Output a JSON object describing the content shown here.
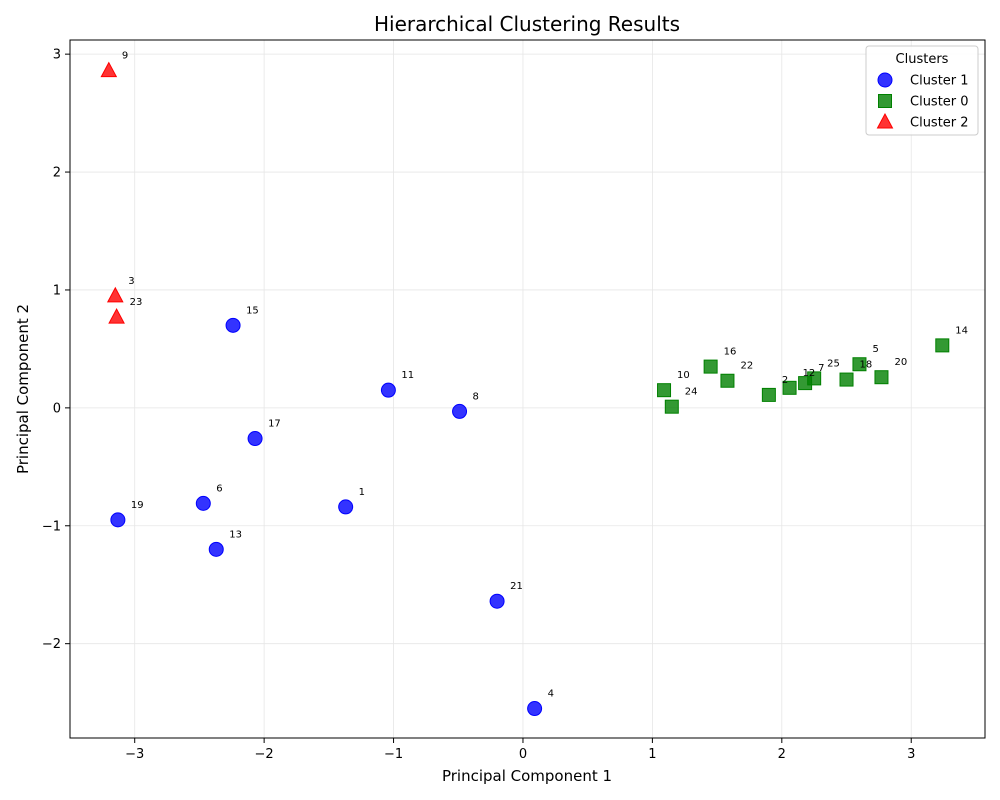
{
  "chart_data": {
    "type": "scatter",
    "title": "Hierarchical Clustering Results",
    "xlabel": "Principal Component 1",
    "ylabel": "Principal Component 2",
    "xlim": [
      -3.5,
      3.57
    ],
    "ylim": [
      -2.8,
      3.12
    ],
    "xticks": [
      -3,
      -2,
      -1,
      0,
      1,
      2,
      3
    ],
    "yticks": [
      -2,
      -1,
      0,
      1,
      2,
      3
    ],
    "tick_labels_x": [
      "−3",
      "−2",
      "−1",
      "0",
      "1",
      "2",
      "3"
    ],
    "tick_labels_y": [
      "−2",
      "−1",
      "0",
      "1",
      "2",
      "3"
    ],
    "grid": true,
    "legend": {
      "title": "Clusters",
      "placement": "top-right"
    },
    "series": [
      {
        "name": "Cluster 1",
        "marker": "circle",
        "color": "#0000ff",
        "points": [
          {
            "id": "15",
            "x": -2.24,
            "y": 0.7
          },
          {
            "id": "11",
            "x": -1.04,
            "y": 0.15
          },
          {
            "id": "8",
            "x": -0.49,
            "y": -0.03
          },
          {
            "id": "17",
            "x": -2.07,
            "y": -0.26
          },
          {
            "id": "6",
            "x": -2.47,
            "y": -0.81
          },
          {
            "id": "1",
            "x": -1.37,
            "y": -0.84
          },
          {
            "id": "19",
            "x": -3.13,
            "y": -0.95
          },
          {
            "id": "13",
            "x": -2.37,
            "y": -1.2
          },
          {
            "id": "21",
            "x": -0.2,
            "y": -1.64
          },
          {
            "id": "4",
            "x": 0.09,
            "y": -2.55
          }
        ]
      },
      {
        "name": "Cluster 0",
        "marker": "square",
        "color": "#008000",
        "points": [
          {
            "id": "14",
            "x": 3.24,
            "y": 0.53
          },
          {
            "id": "5",
            "x": 2.6,
            "y": 0.37
          },
          {
            "id": "16",
            "x": 1.45,
            "y": 0.35
          },
          {
            "id": "20",
            "x": 2.77,
            "y": 0.26
          },
          {
            "id": "18",
            "x": 2.5,
            "y": 0.24
          },
          {
            "id": "25",
            "x": 2.25,
            "y": 0.25
          },
          {
            "id": "7",
            "x": 2.18,
            "y": 0.21
          },
          {
            "id": "12",
            "x": 2.06,
            "y": 0.17
          },
          {
            "id": "22",
            "x": 1.58,
            "y": 0.23
          },
          {
            "id": "2",
            "x": 1.9,
            "y": 0.11
          },
          {
            "id": "10",
            "x": 1.09,
            "y": 0.15
          },
          {
            "id": "24",
            "x": 1.15,
            "y": 0.01
          }
        ]
      },
      {
        "name": "Cluster 2",
        "marker": "triangle",
        "color": "#ff0000",
        "points": [
          {
            "id": "9",
            "x": -3.2,
            "y": 2.86
          },
          {
            "id": "3",
            "x": -3.15,
            "y": 0.95
          },
          {
            "id": "23",
            "x": -3.14,
            "y": 0.77
          }
        ]
      }
    ]
  }
}
